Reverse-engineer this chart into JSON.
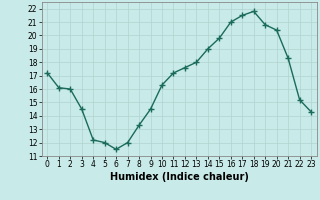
{
  "x": [
    0,
    1,
    2,
    3,
    4,
    5,
    6,
    7,
    8,
    9,
    10,
    11,
    12,
    13,
    14,
    15,
    16,
    17,
    18,
    19,
    20,
    21,
    22,
    23
  ],
  "y": [
    17.2,
    16.1,
    16.0,
    14.5,
    12.2,
    12.0,
    11.5,
    12.0,
    13.3,
    14.5,
    16.3,
    17.2,
    17.6,
    18.0,
    19.0,
    19.8,
    21.0,
    21.5,
    21.8,
    20.8,
    20.4,
    18.3,
    15.2,
    14.3
  ],
  "line_color": "#1a6b5a",
  "marker": "+",
  "marker_size": 4,
  "bg_color": "#c8eae8",
  "grid_color": "#b0d4d0",
  "xlabel": "Humidex (Indice chaleur)",
  "xlim": [
    -0.5,
    23.5
  ],
  "ylim": [
    11,
    22.5
  ],
  "yticks": [
    11,
    12,
    13,
    14,
    15,
    16,
    17,
    18,
    19,
    20,
    21,
    22
  ],
  "xticks": [
    0,
    1,
    2,
    3,
    4,
    5,
    6,
    7,
    8,
    9,
    10,
    11,
    12,
    13,
    14,
    15,
    16,
    17,
    18,
    19,
    20,
    21,
    22,
    23
  ],
  "tick_label_fontsize": 5.5,
  "xlabel_fontsize": 7,
  "line_width": 1.0
}
